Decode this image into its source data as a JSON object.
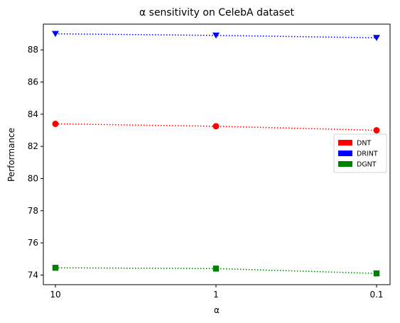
{
  "chart_data": {
    "type": "line",
    "title": "α sensitivity on CelebA dataset",
    "xlabel": "α",
    "ylabel": "Performance",
    "categories": [
      "10",
      "1",
      "0.1"
    ],
    "ylim": [
      73.4,
      89.6
    ],
    "yticks": [
      74,
      76,
      78,
      80,
      82,
      84,
      86,
      88
    ],
    "grid": false,
    "legend_placement": "center-right",
    "series": [
      {
        "name": "DNT",
        "values": [
          83.4,
          83.25,
          83.0
        ],
        "color": "#ff0000",
        "marker": "circle",
        "linestyle": "dotted"
      },
      {
        "name": "DRINT",
        "values": [
          89.0,
          88.9,
          88.75
        ],
        "color": "#0000ff",
        "marker": "triangle-down",
        "linestyle": "dotted"
      },
      {
        "name": "DGNT",
        "values": [
          74.45,
          74.4,
          74.1
        ],
        "color": "#008000",
        "marker": "square",
        "linestyle": "dotted"
      }
    ]
  }
}
